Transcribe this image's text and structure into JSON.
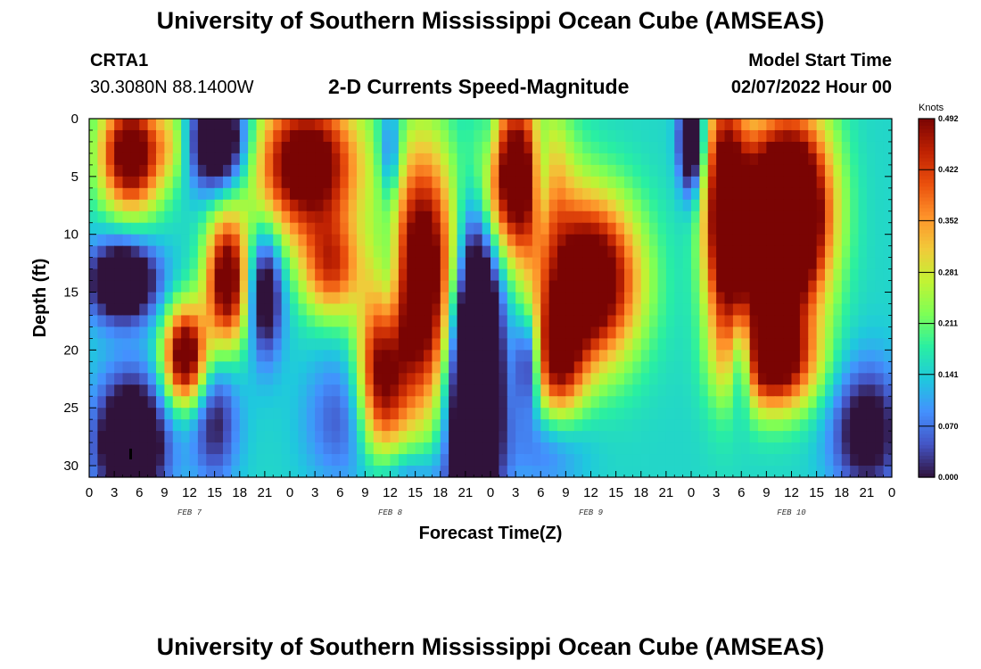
{
  "header": {
    "title": "University of Southern Mississippi Ocean Cube (AMSEAS)",
    "station_id": "CRTA1",
    "station_coords": "30.3080N  88.1400W",
    "product": "2-D Currents Speed-Magnitude",
    "model_start_label": "Model Start Time",
    "model_start_value": "02/07/2022 Hour 00"
  },
  "footer": {
    "title": "University of Southern Mississippi Ocean Cube (AMSEAS)"
  },
  "colors": {
    "background": "#ffffff",
    "text": "#000000",
    "colormap": [
      "#30123b",
      "#4454c4",
      "#4490fe",
      "#1fc8de",
      "#29efa2",
      "#7dff56",
      "#c1f334",
      "#f1ca3a",
      "#fe922a",
      "#ea4f0d",
      "#be2102",
      "#7a0403"
    ]
  },
  "chart_data": {
    "type": "heatmap",
    "title": "2-D Currents Speed-Magnitude",
    "xlabel": "Forecast Time(Z)",
    "ylabel": "Depth (ft)",
    "x_unit": "hours since 02/07/2022 Hour 00",
    "xlim": [
      0,
      96
    ],
    "ylim": [
      0,
      31
    ],
    "x_ticks": [
      0,
      3,
      6,
      9,
      12,
      15,
      18,
      21,
      24,
      27,
      30,
      33,
      36,
      39,
      42,
      45,
      48,
      51,
      54,
      57,
      60,
      63,
      66,
      69,
      72,
      75,
      78,
      81,
      84,
      87,
      90,
      93,
      96
    ],
    "x_tick_labels": [
      "0",
      "3",
      "6",
      "9",
      "12",
      "15",
      "18",
      "21",
      "0",
      "3",
      "6",
      "9",
      "12",
      "15",
      "18",
      "21",
      "0",
      "3",
      "6",
      "9",
      "12",
      "15",
      "18",
      "21",
      "0",
      "3",
      "6",
      "9",
      "12",
      "15",
      "18",
      "21",
      "0"
    ],
    "date_labels": [
      {
        "x": 12,
        "text": "FEB 7"
      },
      {
        "x": 36,
        "text": "FEB 8"
      },
      {
        "x": 60,
        "text": "FEB 9"
      },
      {
        "x": 84,
        "text": "FEB 10"
      }
    ],
    "y_ticks": [
      0,
      5,
      10,
      15,
      20,
      25,
      30
    ],
    "y_tick_labels": [
      "0",
      "5",
      "10",
      "15",
      "20",
      "25",
      "30"
    ],
    "colorbar": {
      "unit": "Knots",
      "min": 0.0,
      "max": 0.492,
      "tick_values": [
        0.0,
        0.07,
        0.141,
        0.211,
        0.281,
        0.352,
        0.422,
        0.492
      ],
      "tick_labels": [
        "0.000",
        "0.070",
        "0.141",
        "0.211",
        "0.281",
        "0.352",
        "0.422",
        "0.492"
      ]
    },
    "features": [
      {
        "t": 5,
        "d": 3,
        "st": 2.6,
        "sd": 3.5,
        "v": 0.42
      },
      {
        "t": 10,
        "d": 2,
        "st": 1.5,
        "sd": 2.5,
        "v": 0.1
      },
      {
        "t": 4,
        "d": 14,
        "st": 3,
        "sd": 2.5,
        "v": -0.28
      },
      {
        "t": 5,
        "d": 28,
        "st": 3,
        "sd": 4,
        "v": -0.3
      },
      {
        "t": 11.5,
        "d": 20.5,
        "st": 1.8,
        "sd": 3,
        "v": 0.42
      },
      {
        "t": 16.5,
        "d": 14,
        "st": 1.8,
        "sd": 4,
        "v": 0.4
      },
      {
        "t": 15.5,
        "d": 2,
        "st": 2.5,
        "sd": 3,
        "v": -0.3
      },
      {
        "t": 15,
        "d": 26,
        "st": 2,
        "sd": 4,
        "v": -0.15
      },
      {
        "t": 21,
        "d": 15,
        "st": 1.5,
        "sd": 4,
        "v": -0.22
      },
      {
        "t": 26,
        "d": 4,
        "st": 4.5,
        "sd": 4.5,
        "v": 0.42
      },
      {
        "t": 29,
        "d": 13,
        "st": 2.5,
        "sd": 3,
        "v": 0.25
      },
      {
        "t": 30,
        "d": 26,
        "st": 3,
        "sd": 4,
        "v": -0.1
      },
      {
        "t": 36,
        "d": 15,
        "st": 1.2,
        "sd": 5,
        "v": -0.15
      },
      {
        "t": 36,
        "d": 3,
        "st": 1,
        "sd": 3,
        "v": -0.15
      },
      {
        "t": 40,
        "d": 14,
        "st": 3,
        "sd": 8,
        "v": 0.45
      },
      {
        "t": 35,
        "d": 22,
        "st": 2,
        "sd": 5,
        "v": 0.35
      },
      {
        "t": 38,
        "d": 31,
        "st": 3,
        "sd": 2,
        "v": -0.1
      },
      {
        "t": 46,
        "d": 21,
        "st": 2.3,
        "sd": 11,
        "v": -0.45
      },
      {
        "t": 44,
        "d": 12,
        "st": 1.2,
        "sd": 4,
        "v": 0.05
      },
      {
        "t": 51,
        "d": 5,
        "st": 3.5,
        "sd": 5,
        "v": 0.45
      },
      {
        "t": 54,
        "d": 5,
        "st": 1,
        "sd": 4,
        "v": -0.2
      },
      {
        "t": 60,
        "d": 14,
        "st": 4,
        "sd": 5,
        "v": 0.45
      },
      {
        "t": 56,
        "d": 21,
        "st": 2.2,
        "sd": 4,
        "v": 0.3
      },
      {
        "t": 52.5,
        "d": 21,
        "st": 1,
        "sd": 3,
        "v": -0.2
      },
      {
        "t": 55,
        "d": 28,
        "st": 3,
        "sd": 3,
        "v": -0.1
      },
      {
        "t": 72,
        "d": 2,
        "st": 1,
        "sd": 3,
        "v": -0.3
      },
      {
        "t": 76,
        "d": 8,
        "st": 1.8,
        "sd": 8,
        "v": 0.4
      },
      {
        "t": 81,
        "d": 10,
        "st": 3,
        "sd": 6,
        "v": 0.45
      },
      {
        "t": 85,
        "d": 8,
        "st": 3,
        "sd": 6,
        "v": 0.42
      },
      {
        "t": 82,
        "d": 21,
        "st": 3.5,
        "sd": 3,
        "v": 0.35
      },
      {
        "t": 78,
        "d": 21,
        "st": 1,
        "sd": 3,
        "v": -0.22
      },
      {
        "t": 93,
        "d": 27,
        "st": 3,
        "sd": 4,
        "v": -0.2
      },
      {
        "t": 48,
        "d": 2,
        "st": 1,
        "sd": 3,
        "v": -0.1
      }
    ]
  }
}
